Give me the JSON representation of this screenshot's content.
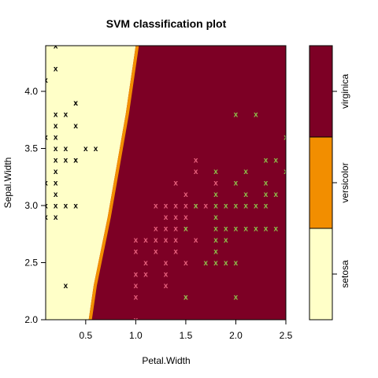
{
  "chart_data": {
    "type": "scatter",
    "title": "SVM classification plot",
    "xlabel": "Petal.Width",
    "ylabel": "Sepal.Width",
    "xlim": [
      0.1,
      2.5
    ],
    "ylim": [
      2.0,
      4.4
    ],
    "x_ticks": [
      0.5,
      1.0,
      1.5,
      2.0,
      2.5
    ],
    "x_tick_labels": [
      "0.5",
      "1.0",
      "1.5",
      "2.0",
      "2.5"
    ],
    "y_ticks": [
      2.0,
      2.5,
      3.0,
      3.5,
      4.0
    ],
    "y_tick_labels": [
      "2.0",
      "2.5",
      "3.0",
      "3.5",
      "4.0"
    ],
    "classes": [
      "setosa",
      "versicolor",
      "virginica"
    ],
    "region_colors": {
      "setosa": "#FFFFC8",
      "versicolor": "#F28E00",
      "virginica": "#7D0025"
    },
    "point_colors": {
      "setosa": "#000000",
      "versicolor": "#E8637F",
      "virginica": "#8DC34B"
    },
    "marker": "x",
    "decision_boundary_setosa": [
      {
        "y": 2.0,
        "x": 0.53
      },
      {
        "y": 2.3,
        "x": 0.58
      },
      {
        "y": 2.6,
        "x": 0.65
      },
      {
        "y": 2.9,
        "x": 0.72
      },
      {
        "y": 3.2,
        "x": 0.78
      },
      {
        "y": 3.5,
        "x": 0.84
      },
      {
        "y": 3.8,
        "x": 0.9
      },
      {
        "y": 4.1,
        "x": 0.95
      },
      {
        "y": 4.4,
        "x": 1.0
      }
    ],
    "series": [
      {
        "name": "setosa",
        "points": [
          [
            0.2,
            4.4
          ],
          [
            0.1,
            4.1
          ],
          [
            0.2,
            4.2
          ],
          [
            0.4,
            3.9
          ],
          [
            0.3,
            3.8
          ],
          [
            0.2,
            3.8
          ],
          [
            0.2,
            3.7
          ],
          [
            0.4,
            3.7
          ],
          [
            0.2,
            3.6
          ],
          [
            0.1,
            3.6
          ],
          [
            0.3,
            3.5
          ],
          [
            0.2,
            3.5
          ],
          [
            0.5,
            3.5
          ],
          [
            0.2,
            3.4
          ],
          [
            0.4,
            3.4
          ],
          [
            0.2,
            3.3
          ],
          [
            0.1,
            3.2
          ],
          [
            0.2,
            3.2
          ],
          [
            0.4,
            3.0
          ],
          [
            0.2,
            3.1
          ],
          [
            0.1,
            3.0
          ],
          [
            0.2,
            3.0
          ],
          [
            0.1,
            2.9
          ],
          [
            0.2,
            2.9
          ],
          [
            0.6,
            3.5
          ],
          [
            0.3,
            3.0
          ],
          [
            0.3,
            2.3
          ],
          [
            0.4,
            3.9
          ],
          [
            0.4,
            3.4
          ],
          [
            0.3,
            3.4
          ]
        ]
      },
      {
        "name": "versicolor",
        "points": [
          [
            1.0,
            2.0
          ],
          [
            1.0,
            2.2
          ],
          [
            1.0,
            2.3
          ],
          [
            1.0,
            2.4
          ],
          [
            1.1,
            2.4
          ],
          [
            1.1,
            2.5
          ],
          [
            1.0,
            2.6
          ],
          [
            1.0,
            2.7
          ],
          [
            1.1,
            2.7
          ],
          [
            1.2,
            2.6
          ],
          [
            1.2,
            2.7
          ],
          [
            1.2,
            2.8
          ],
          [
            1.3,
            2.3
          ],
          [
            1.3,
            2.5
          ],
          [
            1.3,
            2.7
          ],
          [
            1.3,
            2.8
          ],
          [
            1.3,
            2.9
          ],
          [
            1.3,
            3.0
          ],
          [
            1.4,
            2.6
          ],
          [
            1.4,
            2.7
          ],
          [
            1.4,
            2.8
          ],
          [
            1.4,
            2.9
          ],
          [
            1.4,
            3.0
          ],
          [
            1.4,
            3.2
          ],
          [
            1.5,
            2.2
          ],
          [
            1.5,
            2.5
          ],
          [
            1.5,
            2.8
          ],
          [
            1.5,
            2.9
          ],
          [
            1.5,
            3.0
          ],
          [
            1.5,
            3.1
          ],
          [
            1.6,
            2.7
          ],
          [
            1.6,
            3.0
          ],
          [
            1.6,
            3.3
          ],
          [
            1.6,
            3.4
          ],
          [
            1.7,
            3.0
          ],
          [
            1.8,
            3.2
          ],
          [
            1.2,
            3.0
          ],
          [
            1.3,
            2.4
          ]
        ]
      },
      {
        "name": "virginica",
        "points": [
          [
            2.5,
            3.6
          ],
          [
            2.0,
            3.8
          ],
          [
            2.2,
            3.8
          ],
          [
            2.3,
            3.4
          ],
          [
            2.4,
            3.4
          ],
          [
            2.5,
            3.3
          ],
          [
            2.1,
            3.3
          ],
          [
            2.3,
            3.2
          ],
          [
            1.8,
            3.3
          ],
          [
            2.4,
            3.1
          ],
          [
            2.3,
            3.1
          ],
          [
            2.1,
            3.1
          ],
          [
            2.0,
            3.2
          ],
          [
            1.9,
            2.7
          ],
          [
            2.0,
            2.8
          ],
          [
            2.1,
            2.8
          ],
          [
            2.2,
            2.8
          ],
          [
            2.3,
            2.8
          ],
          [
            1.8,
            2.9
          ],
          [
            1.8,
            3.0
          ],
          [
            2.0,
            3.0
          ],
          [
            2.1,
            3.0
          ],
          [
            2.2,
            3.0
          ],
          [
            2.3,
            3.0
          ],
          [
            1.8,
            2.8
          ],
          [
            1.9,
            2.8
          ],
          [
            1.8,
            2.5
          ],
          [
            1.9,
            2.5
          ],
          [
            2.0,
            2.5
          ],
          [
            1.7,
            2.5
          ],
          [
            1.5,
            2.2
          ],
          [
            1.8,
            2.7
          ],
          [
            1.9,
            3.0
          ],
          [
            1.5,
            2.8
          ],
          [
            2.0,
            2.2
          ],
          [
            2.4,
            2.8
          ],
          [
            1.6,
            3.0
          ],
          [
            1.8,
            3.1
          ],
          [
            1.8,
            2.6
          ]
        ]
      }
    ]
  }
}
